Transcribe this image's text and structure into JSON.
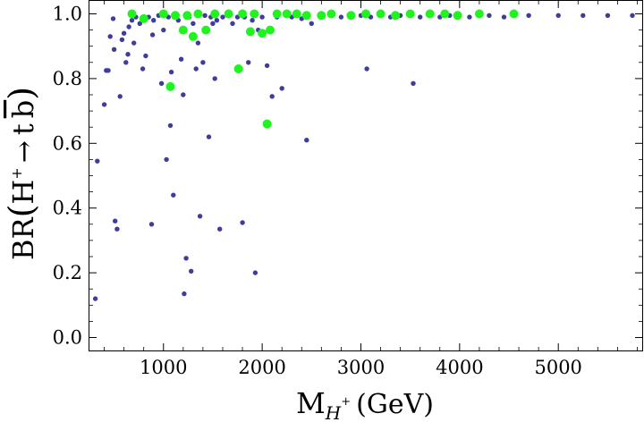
{
  "chart_data": {
    "type": "scatter",
    "title": "",
    "xlabel": {
      "base": "M",
      "sub": "H",
      "sup": "+",
      "unit": "(GeV)"
    },
    "ylabel": {
      "prefix": "BR",
      "particle": "H",
      "sup": "+",
      "arrow": "→",
      "q1": "t",
      "q2": "b"
    },
    "xlim": [
      250,
      5850
    ],
    "ylim": [
      -0.04,
      1.04
    ],
    "xticks": [
      1000,
      2000,
      3000,
      4000,
      5000
    ],
    "xtick_labels": [
      "1000",
      "2000",
      "3000",
      "4000",
      "5000"
    ],
    "yticks": [
      0.0,
      0.2,
      0.4,
      0.6,
      0.8,
      1.0
    ],
    "ytick_labels": [
      "0.0",
      "0.2",
      "0.4",
      "0.6",
      "0.8",
      "1.0"
    ],
    "grid": false,
    "series": [
      {
        "name": "blue",
        "color": "#3f3d99",
        "points": [
          [
            310,
            0.12
          ],
          [
            330,
            0.545
          ],
          [
            400,
            0.72
          ],
          [
            420,
            0.825
          ],
          [
            440,
            0.825
          ],
          [
            460,
            0.93
          ],
          [
            490,
            0.985
          ],
          [
            500,
            0.89
          ],
          [
            510,
            0.36
          ],
          [
            530,
            0.335
          ],
          [
            560,
            0.745
          ],
          [
            580,
            0.92
          ],
          [
            600,
            0.94
          ],
          [
            620,
            0.85
          ],
          [
            640,
            0.875
          ],
          [
            650,
            0.96
          ],
          [
            680,
            0.98
          ],
          [
            700,
            0.91
          ],
          [
            720,
            0.99
          ],
          [
            760,
            0.97
          ],
          [
            790,
            0.83
          ],
          [
            800,
            0.99
          ],
          [
            820,
            0.87
          ],
          [
            850,
            0.99
          ],
          [
            880,
            0.35
          ],
          [
            890,
            0.935
          ],
          [
            900,
            0.98
          ],
          [
            950,
            0.995
          ],
          [
            980,
            0.785
          ],
          [
            1000,
            0.95
          ],
          [
            1030,
            0.55
          ],
          [
            1050,
            0.99
          ],
          [
            1070,
            0.655
          ],
          [
            1080,
            0.82
          ],
          [
            1100,
            0.44
          ],
          [
            1120,
            0.99
          ],
          [
            1150,
            0.98
          ],
          [
            1180,
            0.86
          ],
          [
            1200,
            0.75
          ],
          [
            1210,
            0.135
          ],
          [
            1230,
            0.245
          ],
          [
            1260,
            0.99
          ],
          [
            1280,
            0.205
          ],
          [
            1300,
            0.97
          ],
          [
            1330,
            0.83
          ],
          [
            1350,
            0.91
          ],
          [
            1370,
            0.375
          ],
          [
            1400,
            0.85
          ],
          [
            1420,
            0.995
          ],
          [
            1460,
            0.62
          ],
          [
            1480,
            0.99
          ],
          [
            1500,
            0.97
          ],
          [
            1520,
            0.8
          ],
          [
            1540,
            0.98
          ],
          [
            1570,
            0.335
          ],
          [
            1600,
            0.99
          ],
          [
            1650,
            0.995
          ],
          [
            1700,
            0.97
          ],
          [
            1750,
            0.99
          ],
          [
            1800,
            0.355
          ],
          [
            1820,
            0.99
          ],
          [
            1860,
            0.85
          ],
          [
            1900,
            0.98
          ],
          [
            1930,
            0.2
          ],
          [
            1960,
            0.95
          ],
          [
            2000,
            0.99
          ],
          [
            2050,
            0.84
          ],
          [
            2100,
            0.745
          ],
          [
            2150,
            0.99
          ],
          [
            2200,
            0.77
          ],
          [
            2300,
            0.99
          ],
          [
            2400,
            0.985
          ],
          [
            2450,
            0.61
          ],
          [
            2500,
            0.97
          ],
          [
            2600,
            0.99
          ],
          [
            2700,
            0.995
          ],
          [
            2800,
            0.99
          ],
          [
            2900,
            0.99
          ],
          [
            3000,
            0.995
          ],
          [
            3060,
            0.83
          ],
          [
            3100,
            0.99
          ],
          [
            3200,
            0.995
          ],
          [
            3300,
            0.99
          ],
          [
            3400,
            0.995
          ],
          [
            3530,
            0.785
          ],
          [
            3600,
            0.99
          ],
          [
            3700,
            0.995
          ],
          [
            3800,
            0.99
          ],
          [
            3900,
            0.995
          ],
          [
            4000,
            0.995
          ],
          [
            4100,
            0.99
          ],
          [
            4200,
            0.995
          ],
          [
            4300,
            0.995
          ],
          [
            4450,
            0.99
          ],
          [
            4550,
            0.995
          ],
          [
            4700,
            0.995
          ],
          [
            5000,
            0.995
          ],
          [
            5250,
            0.995
          ],
          [
            5500,
            0.995
          ],
          [
            5750,
            0.995
          ]
        ]
      },
      {
        "name": "green",
        "color": "#1ff41f",
        "points": [
          [
            680,
            1.0
          ],
          [
            800,
            0.985
          ],
          [
            1000,
            1.0
          ],
          [
            1070,
            0.775
          ],
          [
            1120,
            0.995
          ],
          [
            1200,
            0.95
          ],
          [
            1240,
            0.995
          ],
          [
            1300,
            0.93
          ],
          [
            1350,
            1.0
          ],
          [
            1430,
            0.95
          ],
          [
            1520,
            1.0
          ],
          [
            1660,
            1.0
          ],
          [
            1760,
            0.83
          ],
          [
            1800,
            1.0
          ],
          [
            1880,
            0.945
          ],
          [
            1920,
            1.0
          ],
          [
            2000,
            0.94
          ],
          [
            2050,
            0.66
          ],
          [
            2080,
            0.95
          ],
          [
            2150,
            1.0
          ],
          [
            2250,
            1.0
          ],
          [
            2350,
            1.0
          ],
          [
            2450,
            0.995
          ],
          [
            2600,
            0.995
          ],
          [
            2700,
            1.0
          ],
          [
            2900,
            0.995
          ],
          [
            3050,
            1.0
          ],
          [
            3200,
            1.0
          ],
          [
            3350,
            0.995
          ],
          [
            3500,
            1.0
          ],
          [
            3700,
            1.0
          ],
          [
            3850,
            1.0
          ],
          [
            3980,
            0.995
          ],
          [
            4200,
            1.0
          ],
          [
            4550,
            1.0
          ]
        ]
      }
    ]
  }
}
